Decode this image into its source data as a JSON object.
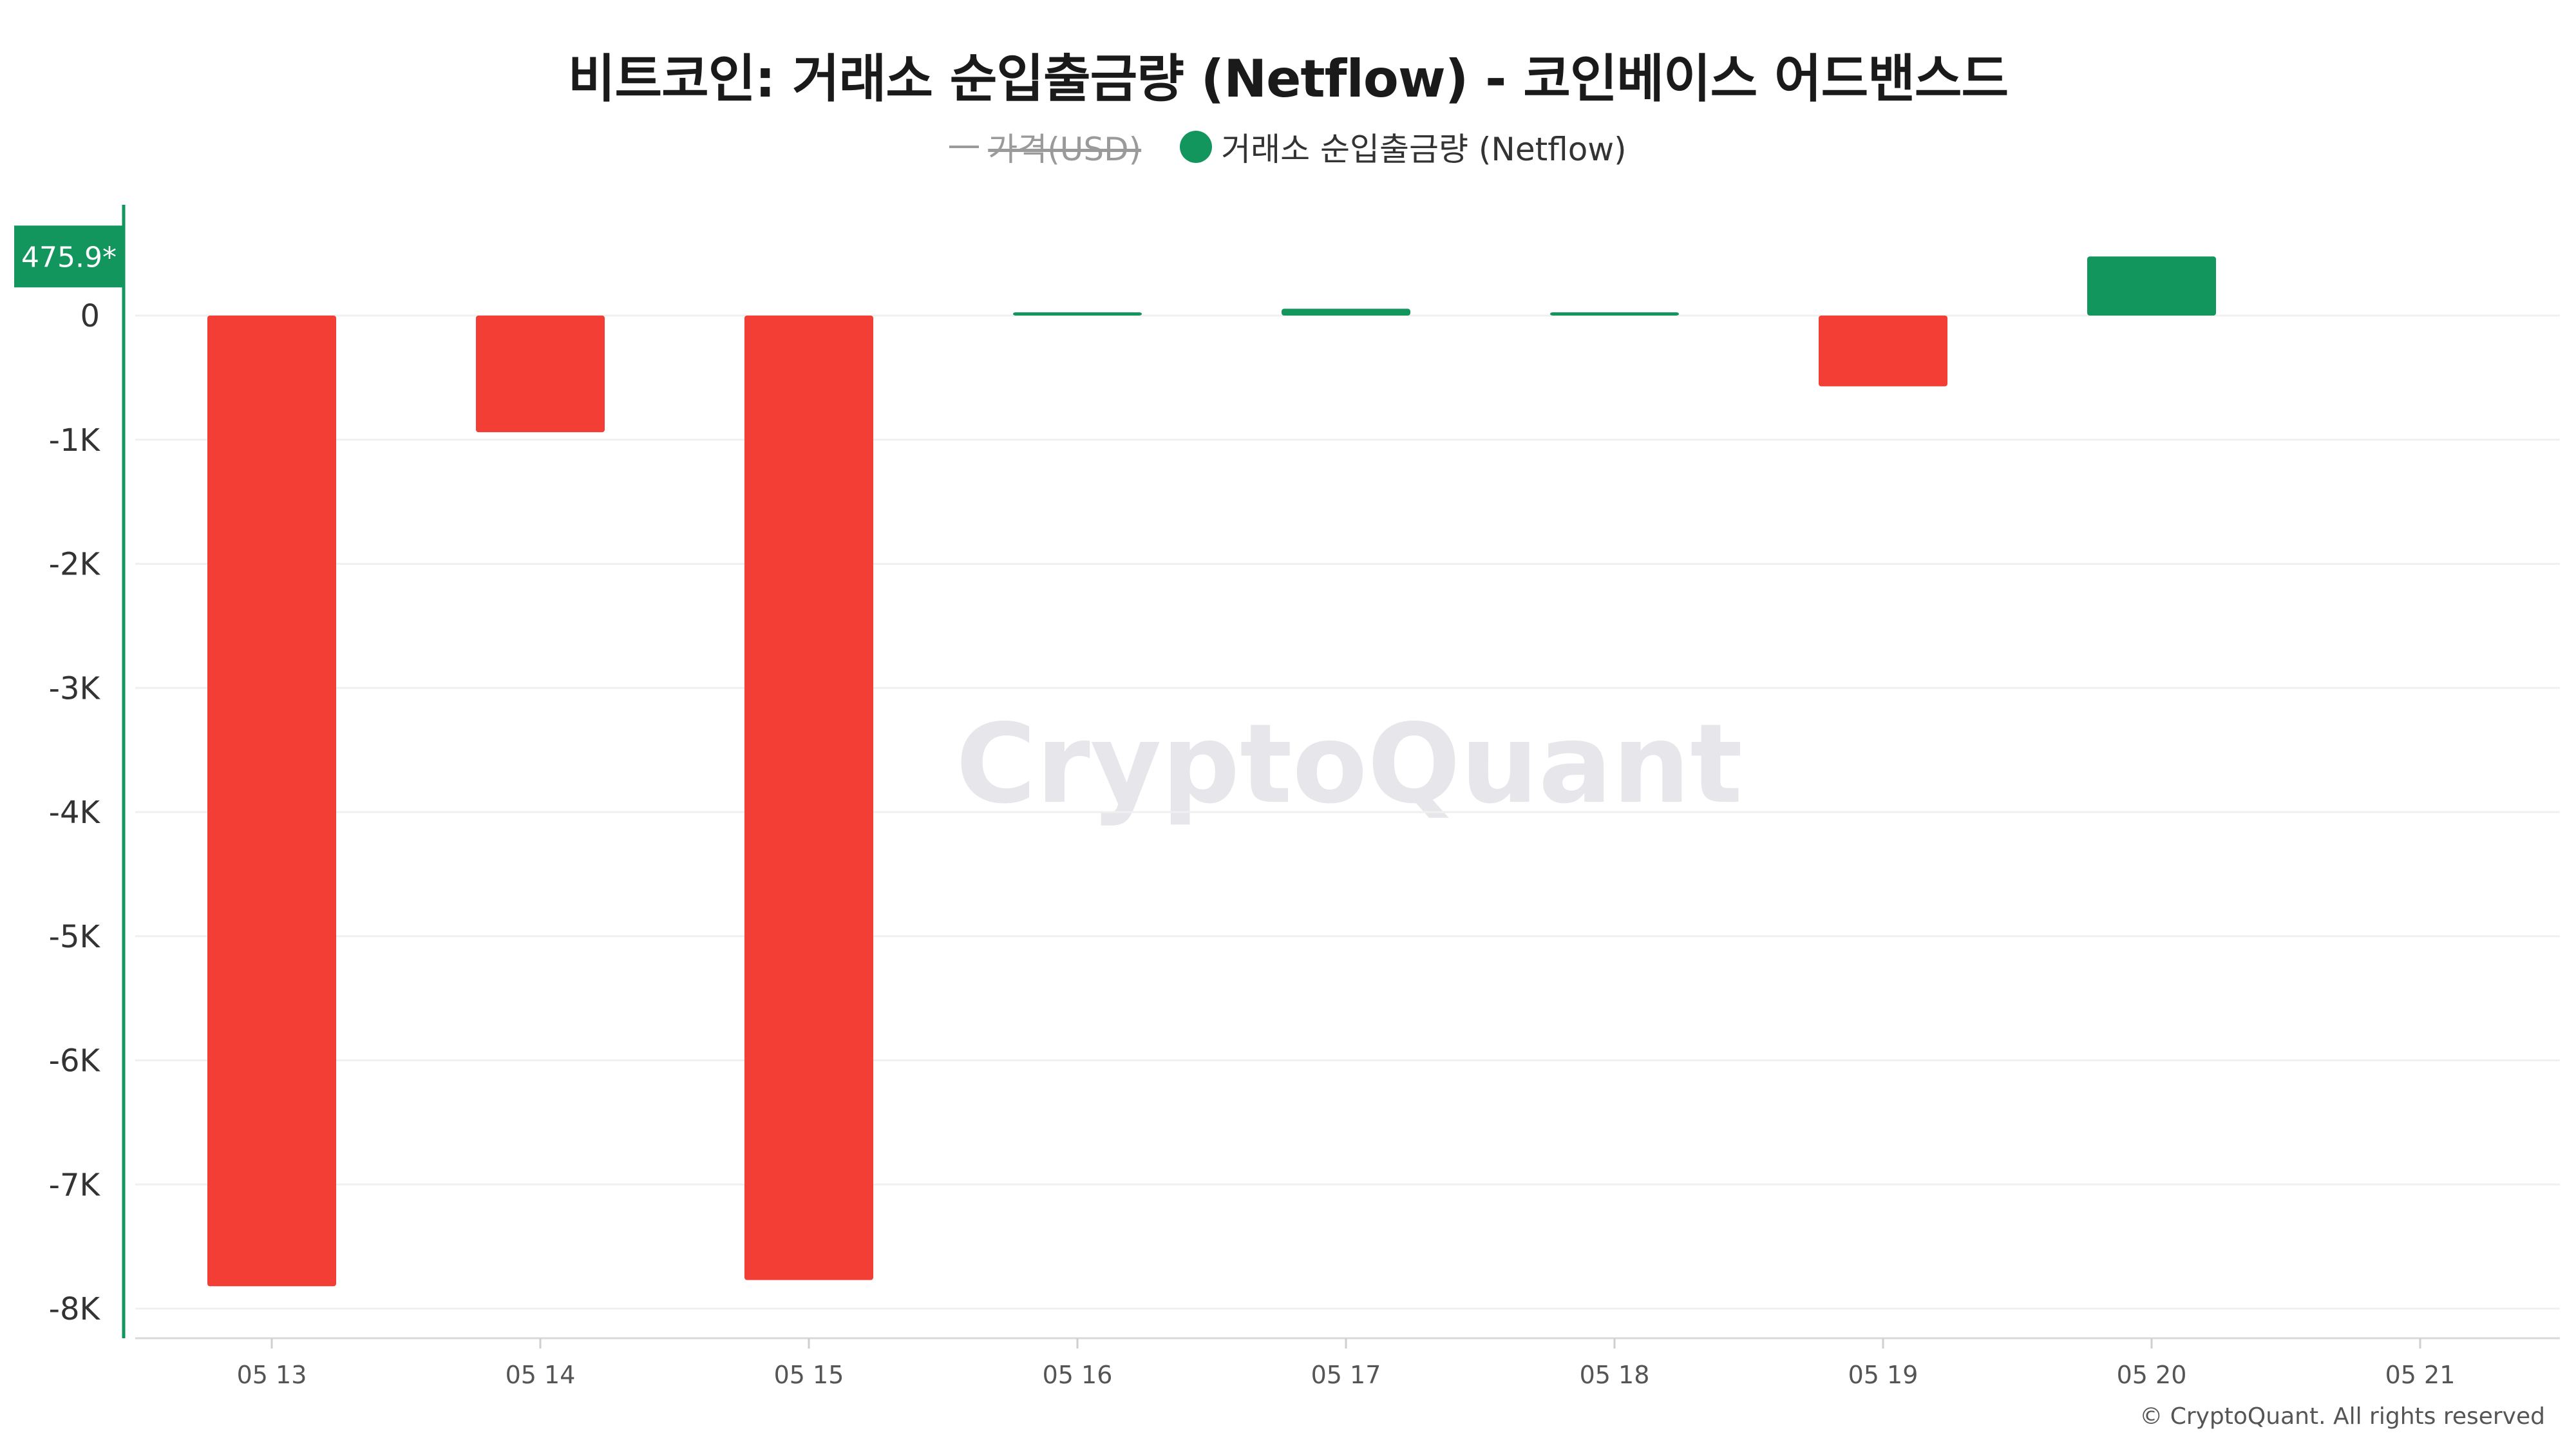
{
  "chart_data": {
    "type": "bar",
    "title": "비트코인: 거래소 순입출금량 (Netflow) - 코인베이스 어드밴스드",
    "categories": [
      "05 13",
      "05 14",
      "05 15",
      "05 16",
      "05 17",
      "05 18",
      "05 19",
      "05 20",
      "05 21"
    ],
    "series": [
      {
        "name": "거래소 순입출금량 (Netflow)",
        "values": [
          -7820,
          -940,
          -7770,
          25,
          55,
          10,
          -570,
          475.9,
          null
        ]
      }
    ],
    "legend": [
      {
        "label": "가격(USD)",
        "enabled": false
      },
      {
        "label": "거래소 순입출금량 (Netflow)",
        "enabled": true
      }
    ],
    "legend_position": "top-center",
    "ylim": [
      -8000,
      0
    ],
    "yticks": [
      0,
      -1000,
      -2000,
      -3000,
      -4000,
      -5000,
      -6000,
      -7000,
      -8000
    ],
    "ytick_labels": [
      "0",
      "-1K",
      "-2K",
      "-3K",
      "-4K",
      "-5K",
      "-6K",
      "-7K",
      "-8K"
    ],
    "last_value_label": "475.9*",
    "grid": true,
    "colors": {
      "positive": "#13965e",
      "negative": "#f33e35",
      "axis": "#13965e",
      "grid": "#f0f0f0",
      "price_legend": "#9a9a9a"
    },
    "watermark": "CryptoQuant",
    "footer": "© CryptoQuant. All rights reserved"
  }
}
